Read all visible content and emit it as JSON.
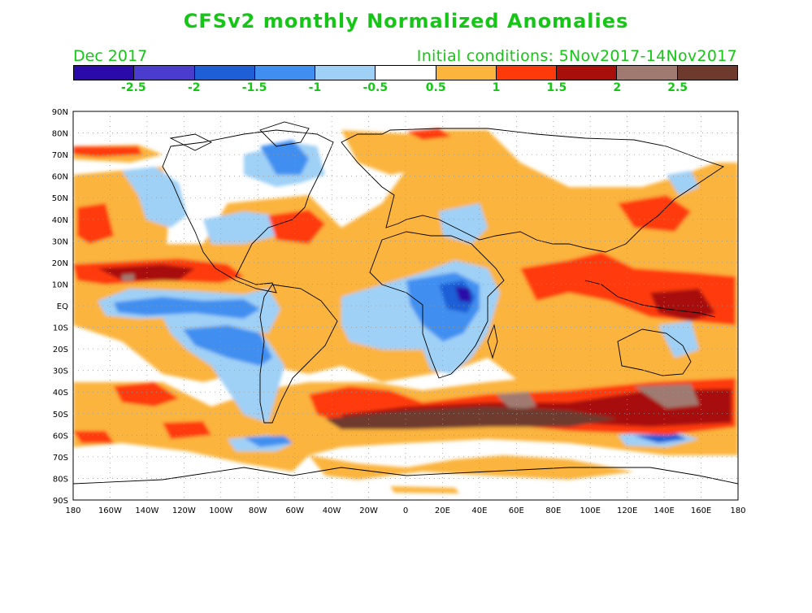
{
  "header": {
    "title": "CFSv2 monthly Normalized Anomalies",
    "target_month": "Dec 2017",
    "initial_conditions": "Initial conditions: 5Nov2017-14Nov2017"
  },
  "colorbar": {
    "colors": [
      "#2a0aa8",
      "#4a3ccc",
      "#1f5fd6",
      "#3f8ff0",
      "#9fd0f6",
      "#ffffff",
      "#fbb43c",
      "#ff3a0a",
      "#a80f0a",
      "#a07a70",
      "#6e3a2e"
    ],
    "labels": [
      "-2.5",
      "-2",
      "-1.5",
      "-1",
      "-0.5",
      "0.5",
      "1",
      "1.5",
      "2",
      "2.5"
    ]
  },
  "map": {
    "lat_labels": [
      "90N",
      "80N",
      "70N",
      "60N",
      "50N",
      "40N",
      "30N",
      "20N",
      "10N",
      "EQ",
      "10S",
      "20S",
      "30S",
      "40S",
      "50S",
      "60S",
      "70S",
      "80S",
      "90S"
    ],
    "lon_labels": [
      "180",
      "160W",
      "140W",
      "120W",
      "100W",
      "80W",
      "60W",
      "40W",
      "20W",
      "0",
      "20E",
      "40E",
      "60E",
      "80E",
      "100E",
      "120E",
      "140E",
      "160E",
      "180"
    ],
    "grid": "dotted"
  }
}
